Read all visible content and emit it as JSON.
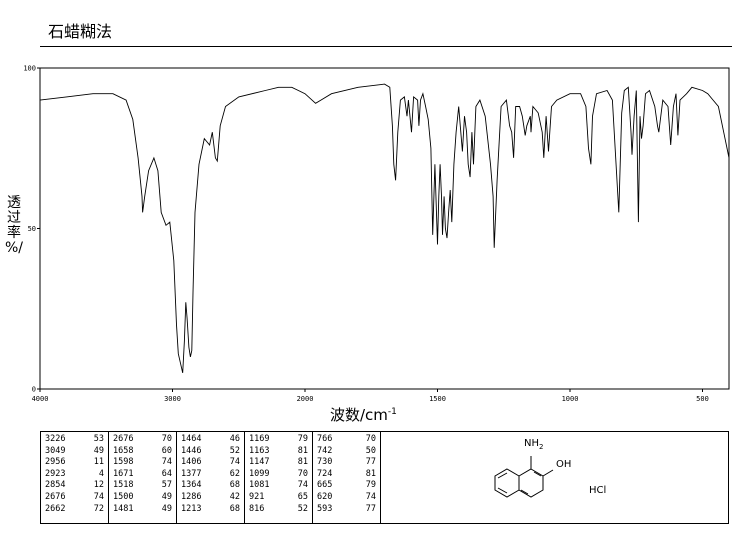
{
  "header": {
    "title": "石蜡糊法"
  },
  "chart_data": {
    "type": "line",
    "xlabel": "波数/cm",
    "xlabel_sup": "-1",
    "ylabel_chars": [
      "透",
      "过",
      "率",
      "%/"
    ],
    "xlim": [
      4000,
      400
    ],
    "ylim": [
      0,
      100
    ],
    "x_ticks": [
      4000,
      3000,
      2000,
      1500,
      1000,
      500
    ],
    "x_tick_labels": [
      "4000",
      "3000",
      "2000",
      "1500",
      "1000",
      "500"
    ],
    "y_ticks": [
      0,
      50,
      100
    ],
    "y_tick_labels": [
      "0",
      "50",
      "100"
    ],
    "series": [
      {
        "points": [
          [
            4000,
            90
          ],
          [
            3800,
            91
          ],
          [
            3600,
            92
          ],
          [
            3450,
            92
          ],
          [
            3350,
            90
          ],
          [
            3300,
            84
          ],
          [
            3260,
            72
          ],
          [
            3230,
            60
          ],
          [
            3226,
            55
          ],
          [
            3210,
            60
          ],
          [
            3180,
            68
          ],
          [
            3140,
            72
          ],
          [
            3110,
            68
          ],
          [
            3085,
            55
          ],
          [
            3049,
            51
          ],
          [
            3020,
            52
          ],
          [
            2990,
            40
          ],
          [
            2970,
            20
          ],
          [
            2956,
            11
          ],
          [
            2940,
            8
          ],
          [
            2923,
            5
          ],
          [
            2910,
            15
          ],
          [
            2900,
            27
          ],
          [
            2890,
            22
          ],
          [
            2876,
            13
          ],
          [
            2865,
            10
          ],
          [
            2854,
            12
          ],
          [
            2845,
            30
          ],
          [
            2830,
            55
          ],
          [
            2800,
            70
          ],
          [
            2760,
            78
          ],
          [
            2720,
            76
          ],
          [
            2700,
            80
          ],
          [
            2676,
            72
          ],
          [
            2662,
            71
          ],
          [
            2640,
            82
          ],
          [
            2600,
            88
          ],
          [
            2500,
            91
          ],
          [
            2300,
            93
          ],
          [
            2200,
            94
          ],
          [
            2100,
            94
          ],
          [
            2050,
            93
          ],
          [
            2000,
            92
          ],
          [
            1960,
            89
          ],
          [
            1940,
            90
          ],
          [
            1900,
            92
          ],
          [
            1800,
            94
          ],
          [
            1700,
            95
          ],
          [
            1680,
            94
          ],
          [
            1670,
            82
          ],
          [
            1665,
            70
          ],
          [
            1658,
            65
          ],
          [
            1650,
            80
          ],
          [
            1640,
            90
          ],
          [
            1625,
            91
          ],
          [
            1615,
            85
          ],
          [
            1610,
            90
          ],
          [
            1598,
            80
          ],
          [
            1590,
            91
          ],
          [
            1575,
            90
          ],
          [
            1570,
            82
          ],
          [
            1564,
            90
          ],
          [
            1555,
            92
          ],
          [
            1545,
            88
          ],
          [
            1535,
            84
          ],
          [
            1525,
            75
          ],
          [
            1518,
            48
          ],
          [
            1510,
            70
          ],
          [
            1500,
            45
          ],
          [
            1495,
            60
          ],
          [
            1490,
            70
          ],
          [
            1485,
            60
          ],
          [
            1481,
            48
          ],
          [
            1475,
            60
          ],
          [
            1470,
            50
          ],
          [
            1464,
            47
          ],
          [
            1458,
            55
          ],
          [
            1452,
            62
          ],
          [
            1446,
            52
          ],
          [
            1438,
            70
          ],
          [
            1430,
            80
          ],
          [
            1420,
            88
          ],
          [
            1412,
            80
          ],
          [
            1406,
            74
          ],
          [
            1398,
            85
          ],
          [
            1390,
            80
          ],
          [
            1384,
            70
          ],
          [
            1377,
            66
          ],
          [
            1370,
            80
          ],
          [
            1364,
            70
          ],
          [
            1355,
            88
          ],
          [
            1340,
            90
          ],
          [
            1320,
            85
          ],
          [
            1300,
            70
          ],
          [
            1290,
            60
          ],
          [
            1286,
            44
          ],
          [
            1275,
            65
          ],
          [
            1260,
            88
          ],
          [
            1240,
            90
          ],
          [
            1228,
            82
          ],
          [
            1220,
            80
          ],
          [
            1213,
            72
          ],
          [
            1205,
            88
          ],
          [
            1190,
            88
          ],
          [
            1180,
            85
          ],
          [
            1169,
            79
          ],
          [
            1163,
            82
          ],
          [
            1150,
            85
          ],
          [
            1147,
            80
          ],
          [
            1140,
            88
          ],
          [
            1120,
            86
          ],
          [
            1105,
            80
          ],
          [
            1099,
            72
          ],
          [
            1090,
            85
          ],
          [
            1081,
            74
          ],
          [
            1070,
            88
          ],
          [
            1050,
            90
          ],
          [
            1000,
            92
          ],
          [
            960,
            92
          ],
          [
            940,
            88
          ],
          [
            930,
            75
          ],
          [
            921,
            70
          ],
          [
            915,
            85
          ],
          [
            900,
            92
          ],
          [
            860,
            93
          ],
          [
            840,
            90
          ],
          [
            816,
            55
          ],
          [
            805,
            86
          ],
          [
            795,
            93
          ],
          [
            780,
            94
          ],
          [
            770,
            80
          ],
          [
            766,
            73
          ],
          [
            758,
            85
          ],
          [
            750,
            93
          ],
          [
            742,
            52
          ],
          [
            736,
            85
          ],
          [
            730,
            78
          ],
          [
            724,
            82
          ],
          [
            715,
            92
          ],
          [
            700,
            93
          ],
          [
            680,
            88
          ],
          [
            670,
            82
          ],
          [
            665,
            80
          ],
          [
            650,
            90
          ],
          [
            630,
            88
          ],
          [
            620,
            76
          ],
          [
            610,
            88
          ],
          [
            600,
            92
          ],
          [
            593,
            79
          ],
          [
            585,
            90
          ],
          [
            560,
            92
          ],
          [
            540,
            94
          ],
          [
            500,
            93
          ],
          [
            480,
            92
          ],
          [
            460,
            90
          ],
          [
            440,
            88
          ],
          [
            420,
            80
          ],
          [
            400,
            72
          ]
        ]
      }
    ]
  },
  "peak_table": {
    "columns": [
      [
        [
          "3226",
          "53"
        ],
        [
          "3049",
          "49"
        ],
        [
          "2956",
          "11"
        ],
        [
          "2923",
          "4"
        ],
        [
          "2854",
          "12"
        ],
        [
          "2676",
          "74"
        ],
        [
          "2662",
          "72"
        ]
      ],
      [
        [
          "2676",
          "70"
        ],
        [
          "1658",
          "60"
        ],
        [
          "1598",
          "74"
        ],
        [
          "1671",
          "64"
        ],
        [
          "1518",
          "57"
        ],
        [
          "1500",
          "49"
        ],
        [
          "1481",
          "49"
        ]
      ],
      [
        [
          "1464",
          "46"
        ],
        [
          "1446",
          "52"
        ],
        [
          "1406",
          "74"
        ],
        [
          "1377",
          "62"
        ],
        [
          "1364",
          "68"
        ],
        [
          "1286",
          "42"
        ],
        [
          "1213",
          "68"
        ]
      ],
      [
        [
          "1169",
          "79"
        ],
        [
          "1163",
          "81"
        ],
        [
          "1147",
          "81"
        ],
        [
          "1099",
          "70"
        ],
        [
          "1081",
          "74"
        ],
        [
          "921",
          "65"
        ],
        [
          "816",
          "52"
        ]
      ],
      [
        [
          "766",
          "70"
        ],
        [
          "742",
          "50"
        ],
        [
          "730",
          "77"
        ],
        [
          "724",
          "81"
        ],
        [
          "665",
          "79"
        ],
        [
          "620",
          "74"
        ],
        [
          "593",
          "77"
        ]
      ]
    ]
  },
  "structure": {
    "amine_label": "NH",
    "amine_subscript": "2",
    "hydroxyl_label": "OH",
    "salt_label": "HCl"
  }
}
